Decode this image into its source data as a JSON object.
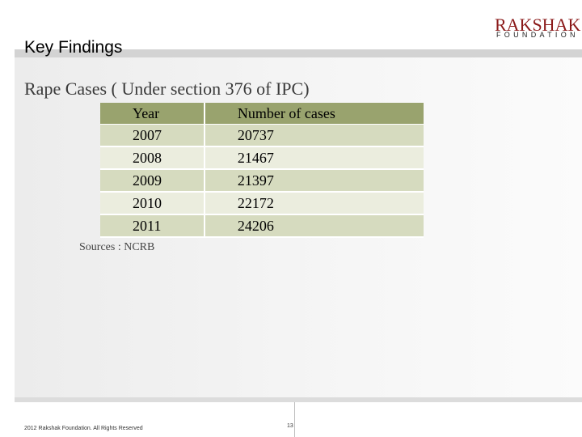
{
  "header": {
    "title": "Key Findings"
  },
  "logo": {
    "main": "RAKSHAK",
    "sub": "FOUNDATION"
  },
  "slide": {
    "title": "Rape Cases ( Under section 376 of IPC)"
  },
  "table": {
    "headers": [
      "Year",
      "Number of cases"
    ],
    "rows": [
      [
        "2007",
        "20737"
      ],
      [
        "2008",
        "21467"
      ],
      [
        "2009",
        "21397"
      ],
      [
        "2010",
        "22172"
      ],
      [
        "2011",
        "24206"
      ]
    ]
  },
  "sources": "Sources : NCRB",
  "footer": {
    "copyright": "2012 Rakshak Foundation. All Rights Reserved",
    "page": "13"
  },
  "colors": {
    "header_row": "#99a36e",
    "row_odd": "#d6dbbf",
    "row_even": "#ebedde",
    "logo": "#8b1a1a"
  }
}
